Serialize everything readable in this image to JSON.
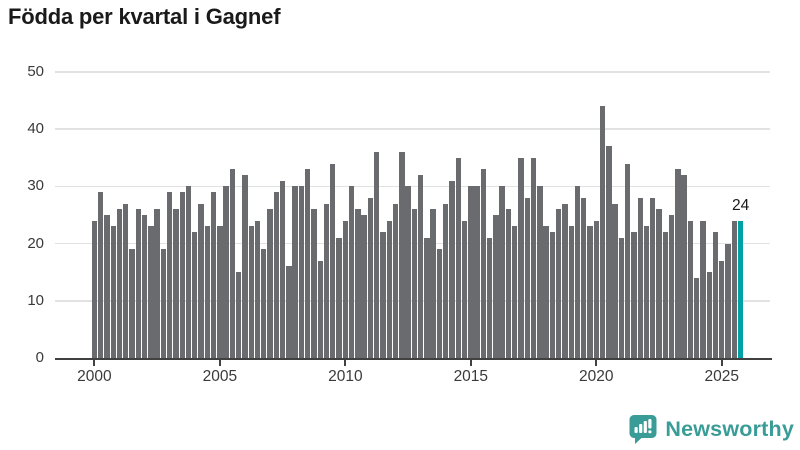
{
  "header": {
    "title": "Födda per kvartal i Gagnef"
  },
  "chart_data": {
    "type": "bar",
    "title": "Födda per kvartal i Gagnef",
    "x_unit": "quarter",
    "categories": [
      "2000Q1",
      "2000Q2",
      "2000Q3",
      "2000Q4",
      "2001Q1",
      "2001Q2",
      "2001Q3",
      "2001Q4",
      "2002Q1",
      "2002Q2",
      "2002Q3",
      "2002Q4",
      "2003Q1",
      "2003Q2",
      "2003Q3",
      "2003Q4",
      "2004Q1",
      "2004Q2",
      "2004Q3",
      "2004Q4",
      "2005Q1",
      "2005Q2",
      "2005Q3",
      "2005Q4",
      "2006Q1",
      "2006Q2",
      "2006Q3",
      "2006Q4",
      "2007Q1",
      "2007Q2",
      "2007Q3",
      "2007Q4",
      "2008Q1",
      "2008Q2",
      "2008Q3",
      "2008Q4",
      "2009Q1",
      "2009Q2",
      "2009Q3",
      "2009Q4",
      "2010Q1",
      "2010Q2",
      "2010Q3",
      "2010Q4",
      "2011Q1",
      "2011Q2",
      "2011Q3",
      "2011Q4",
      "2012Q1",
      "2012Q2",
      "2012Q3",
      "2012Q4",
      "2013Q1",
      "2013Q2",
      "2013Q3",
      "2013Q4",
      "2014Q1",
      "2014Q2",
      "2014Q3",
      "2014Q4",
      "2015Q1",
      "2015Q2",
      "2015Q3",
      "2015Q4",
      "2016Q1",
      "2016Q2",
      "2016Q3",
      "2016Q4",
      "2017Q1",
      "2017Q2",
      "2017Q3",
      "2017Q4",
      "2018Q1",
      "2018Q2",
      "2018Q3",
      "2018Q4",
      "2019Q1",
      "2019Q2",
      "2019Q3",
      "2019Q4",
      "2020Q1",
      "2020Q2",
      "2020Q3",
      "2020Q4",
      "2021Q1",
      "2021Q2",
      "2021Q3",
      "2021Q4",
      "2022Q1",
      "2022Q2",
      "2022Q3",
      "2022Q4",
      "2023Q1",
      "2023Q2",
      "2023Q3",
      "2023Q4",
      "2024Q1",
      "2024Q2",
      "2024Q3",
      "2024Q4",
      "2025Q1",
      "2025Q2",
      "2025Q3",
      "2025Q4"
    ],
    "values": [
      24,
      29,
      25,
      23,
      26,
      27,
      19,
      26,
      25,
      23,
      26,
      19,
      29,
      26,
      29,
      30,
      22,
      27,
      23,
      29,
      23,
      30,
      33,
      15,
      32,
      23,
      24,
      19,
      26,
      29,
      31,
      16,
      30,
      30,
      33,
      26,
      17,
      27,
      34,
      21,
      24,
      30,
      26,
      25,
      28,
      36,
      22,
      24,
      27,
      36,
      30,
      26,
      32,
      21,
      26,
      19,
      27,
      31,
      35,
      24,
      30,
      30,
      33,
      21,
      25,
      30,
      26,
      23,
      35,
      28,
      35,
      30,
      23,
      22,
      26,
      27,
      23,
      30,
      28,
      23,
      24,
      44,
      37,
      27,
      21,
      34,
      22,
      28,
      23,
      28,
      26,
      22,
      25,
      33,
      32,
      24,
      14,
      24,
      15,
      22,
      17,
      20,
      24,
      24
    ],
    "ylim": [
      0,
      50
    ],
    "y_ticks": [
      0,
      10,
      20,
      30,
      40,
      50
    ],
    "x_tick_labels": [
      "2000",
      "2005",
      "2010",
      "2015",
      "2020",
      "2025"
    ],
    "grid": "horizontal",
    "legend": "none",
    "highlight_last_bar": true,
    "annotation": {
      "text": "24",
      "target": "2025Q4"
    },
    "colors": {
      "bar": "#6a6b6f",
      "highlight": "#00a1a5",
      "gridline": "#e2e2e2",
      "axis": "#414141",
      "tick_label": "#3a3a3a"
    }
  },
  "footer": {
    "brand": "Newsworthy",
    "logo_color": "#3a9c97"
  }
}
